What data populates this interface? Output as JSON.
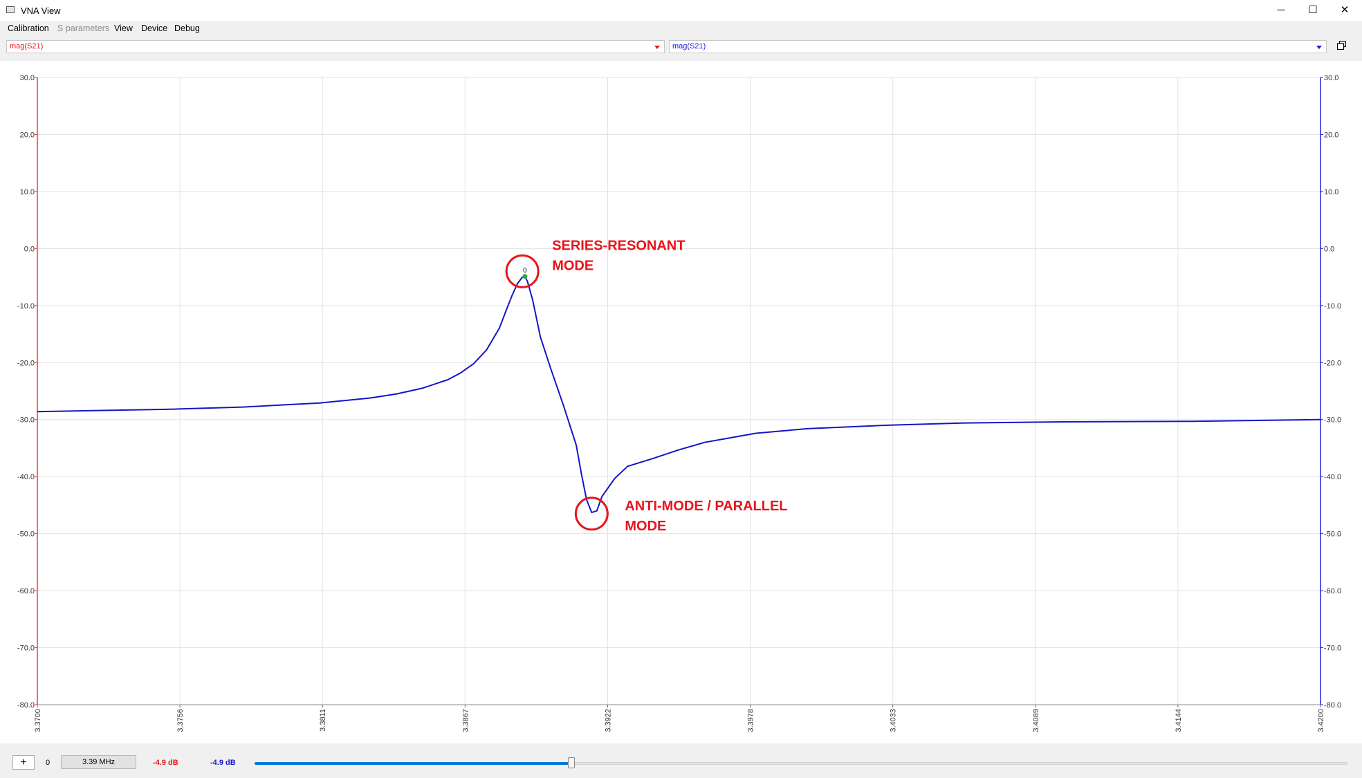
{
  "window": {
    "title": "VNA View",
    "controls": {
      "minimize": "─",
      "maximize": "☐",
      "close": "✕"
    }
  },
  "menu": {
    "items": [
      {
        "label": "Calibration",
        "enabled": true
      },
      {
        "label": "S parameters",
        "enabled": false
      },
      {
        "label": "View",
        "enabled": true
      },
      {
        "label": "Device",
        "enabled": true
      },
      {
        "label": "Debug",
        "enabled": true
      }
    ]
  },
  "trace_selectors": {
    "left": {
      "value": "mag(S21)",
      "color": "#e8141c"
    },
    "right": {
      "value": "mag(S21)",
      "color": "#1b1bd6"
    }
  },
  "restore_icon": "restore-window-icon",
  "chart_data": {
    "type": "line",
    "x_ticks": [
      "3.3700",
      "3.3756",
      "3.3811",
      "3.3867",
      "3.3922",
      "3.3978",
      "3.4033",
      "3.4089",
      "3.4144",
      "3.4200"
    ],
    "y_ticks_left": [
      "30.0",
      "20.0",
      "10.0",
      "0.0",
      "-10.0",
      "-20.0",
      "-30.0",
      "-40.0",
      "-50.0",
      "-60.0",
      "-70.0",
      "-80.0"
    ],
    "y_ticks_right": [
      "30.0",
      "20.0",
      "10.0",
      "0.0",
      "-10.0",
      "-20.0",
      "-30.0",
      "-40.0",
      "-50.0",
      "-60.0",
      "-70.0",
      "-80.0"
    ],
    "xlim": [
      3.37,
      3.42
    ],
    "ylim": [
      -80,
      30
    ],
    "grid": true,
    "left_axis_color": "#ff3333",
    "right_axis_color": "#2222dd",
    "series": [
      {
        "color": "#1414c8",
        "x": [
          3.37,
          3.375,
          3.378,
          3.381,
          3.383,
          3.384,
          3.385,
          3.386,
          3.3865,
          3.387,
          3.3875,
          3.388,
          3.3883,
          3.3885,
          3.3887,
          3.3889,
          3.389,
          3.3891,
          3.3893,
          3.3896,
          3.39,
          3.3905,
          3.391,
          3.3912,
          3.3914,
          3.3916,
          3.3918,
          3.392,
          3.3925,
          3.393,
          3.394,
          3.395,
          3.396,
          3.398,
          3.4,
          3.403,
          3.406,
          3.41,
          3.415,
          3.42
        ],
        "y": [
          -28.6,
          -28.2,
          -27.8,
          -27.1,
          -26.2,
          -25.5,
          -24.5,
          -23.0,
          -21.8,
          -20.2,
          -17.8,
          -14.0,
          -10.5,
          -8.2,
          -6.2,
          -5.0,
          -4.9,
          -5.8,
          -9.0,
          -15.5,
          -21.0,
          -27.5,
          -34.5,
          -39.5,
          -44.0,
          -46.3,
          -46.0,
          -43.5,
          -40.3,
          -38.2,
          -36.8,
          -35.3,
          -34.0,
          -32.4,
          -31.6,
          -31.0,
          -30.6,
          -30.4,
          -30.3,
          -30.0
        ]
      }
    ],
    "marker": {
      "label": "0",
      "x": 3.389,
      "y": -4.9,
      "color": "#22aa44"
    },
    "annotations": [
      {
        "lines": [
          "SERIES-RESONANT",
          "MODE"
        ],
        "circle_at": {
          "x": 3.3889,
          "y": -4.0
        },
        "color": "#e8141c"
      },
      {
        "lines": [
          "ANTI-MODE / PARALLEL",
          "MODE"
        ],
        "circle_at": {
          "x": 3.3916,
          "y": -46.5
        },
        "color": "#e8141c"
      }
    ]
  },
  "bottom_bar": {
    "add_label": "+",
    "marker_index": "0",
    "frequency": "3.39 MHz",
    "value_left": "-4.9 dB",
    "value_left_color": "#e8141c",
    "value_right": "-4.9 dB",
    "value_right_color": "#1b1bd6",
    "slider_fraction": 0.29
  }
}
